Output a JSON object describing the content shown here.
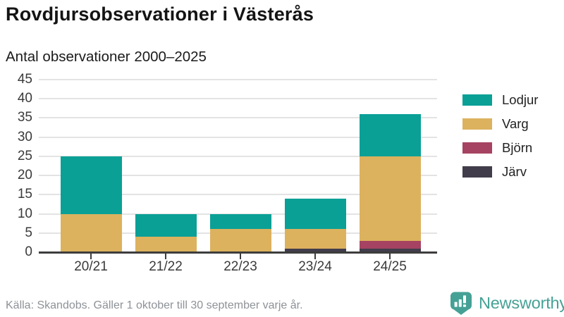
{
  "header": {
    "title": "Rovdjursobservationer i Västerås",
    "subtitle": "Antal observationer 2000–2025"
  },
  "chart_data": {
    "type": "bar",
    "stacked": true,
    "title": "Rovdjursobservationer i Västerås",
    "subtitle": "Antal observationer 2000–2025",
    "categories": [
      "20/21",
      "21/22",
      "22/23",
      "23/24",
      "24/25"
    ],
    "series": [
      {
        "name": "Lodjur",
        "color": "#0aa096",
        "values": [
          15,
          6,
          4,
          8,
          11
        ]
      },
      {
        "name": "Varg",
        "color": "#dcb25e",
        "values": [
          10,
          4,
          6,
          5,
          22
        ]
      },
      {
        "name": "Björn",
        "color": "#a64362",
        "values": [
          0,
          0,
          0,
          0,
          2
        ]
      },
      {
        "name": "Järv",
        "color": "#413d4b",
        "values": [
          0,
          0,
          0,
          1,
          1
        ]
      }
    ],
    "stack_order_bottom_to_top": [
      "Järv",
      "Björn",
      "Varg",
      "Lodjur"
    ],
    "totals": [
      25,
      10,
      10,
      14,
      36
    ],
    "ylim": [
      0,
      45
    ],
    "yticks": [
      0,
      5,
      10,
      15,
      20,
      25,
      30,
      35,
      40,
      45
    ],
    "xlabel": "",
    "ylabel": "",
    "grid": true,
    "legend_position": "right"
  },
  "footer": {
    "source": "Källa: Skandobs. Gäller 1 oktober till 30 september varje år.",
    "brand": "Newsworthy"
  },
  "colors": {
    "lodjur": "#0aa096",
    "varg": "#dcb25e",
    "bjorn": "#a64362",
    "jarv": "#413d4b",
    "axis": "#3d3d3d",
    "grid": "#e3e3e3",
    "tick_text": "#3a3a3a",
    "title_text": "#141414",
    "muted_text": "#8e9297",
    "brand_teal": "#45a195",
    "background": "#ffffff"
  }
}
